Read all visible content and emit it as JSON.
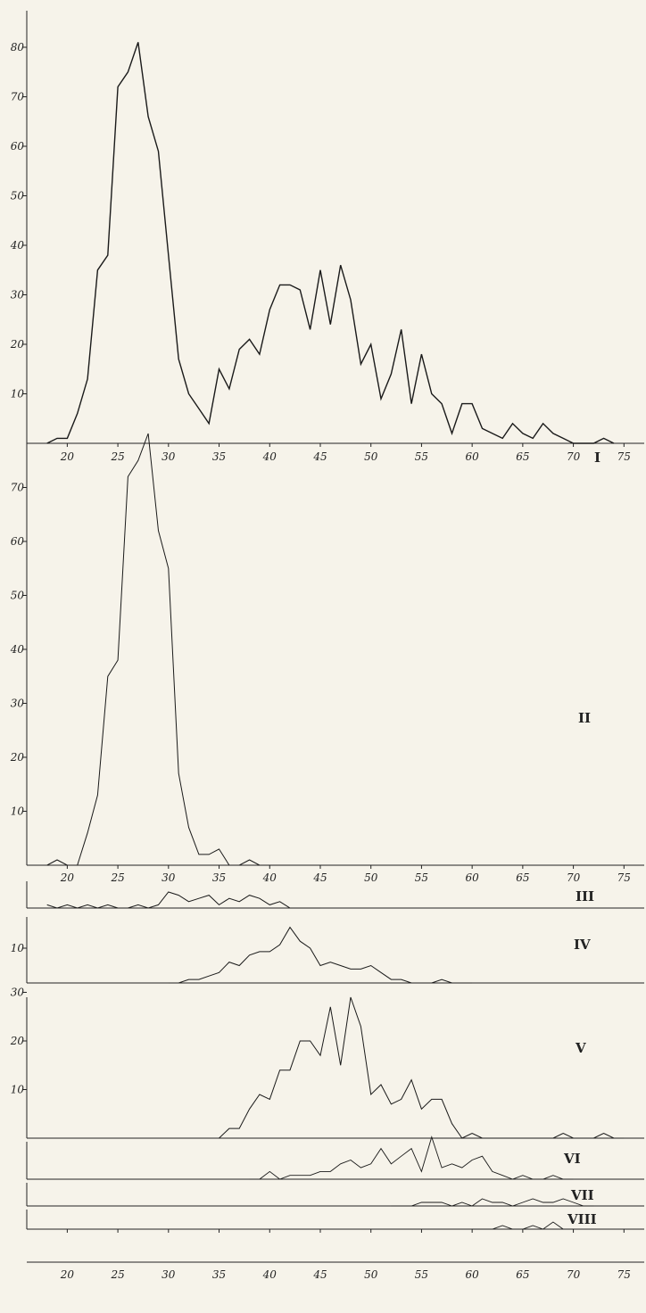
{
  "chart_data": [
    {
      "panel": "I",
      "type": "line",
      "x": [
        18,
        19,
        20,
        21,
        22,
        23,
        24,
        25,
        26,
        27,
        28,
        29,
        30,
        31,
        32,
        33,
        34,
        35,
        36,
        37,
        38,
        39,
        40,
        41,
        42,
        43,
        44,
        45,
        46,
        47,
        48,
        49,
        50,
        51,
        52,
        53,
        54,
        55,
        56,
        57,
        58,
        59,
        60,
        61,
        62,
        63,
        64,
        65,
        66,
        67,
        68,
        69,
        70,
        71,
        72,
        73,
        74
      ],
      "values": [
        0,
        1,
        1,
        6,
        13,
        35,
        38,
        72,
        75,
        81,
        66,
        59,
        38,
        17,
        10,
        7,
        4,
        15,
        11,
        19,
        21,
        18,
        27,
        32,
        32,
        31,
        23,
        35,
        24,
        36,
        29,
        16,
        20,
        9,
        14,
        23,
        8,
        18,
        10,
        8,
        2,
        8,
        8,
        3,
        2,
        1,
        4,
        2,
        1,
        4,
        2,
        1,
        0,
        0,
        0,
        1,
        0
      ],
      "xlim": [
        16,
        77
      ],
      "ylim": [
        0,
        85
      ],
      "xticks": [
        20,
        25,
        30,
        35,
        40,
        45,
        50,
        55,
        60,
        65,
        70,
        75
      ],
      "yticks": [
        10,
        20,
        30,
        40,
        50,
        60,
        70,
        80
      ],
      "label": "I"
    },
    {
      "panel": "II",
      "type": "line",
      "x": [
        18,
        19,
        20,
        21,
        22,
        23,
        24,
        25,
        26,
        27,
        28,
        29,
        30,
        31,
        32,
        33,
        34,
        35,
        36,
        37,
        38,
        39,
        40,
        41,
        42
      ],
      "values": [
        0,
        1,
        0,
        0,
        6,
        13,
        35,
        38,
        72,
        75,
        80,
        62,
        55,
        17,
        7,
        2,
        2,
        3,
        0,
        0,
        1,
        0,
        0,
        0,
        0
      ],
      "xlim": [
        16,
        77
      ],
      "ylim": [
        0,
        80
      ],
      "xticks": [
        20,
        25,
        30,
        35,
        40,
        45,
        50,
        55,
        60,
        65,
        70,
        75
      ],
      "yticks": [
        10,
        20,
        30,
        40,
        50,
        60,
        70
      ],
      "label": "II"
    },
    {
      "panel": "III",
      "type": "line",
      "x": [
        18,
        19,
        20,
        21,
        22,
        23,
        24,
        25,
        26,
        27,
        28,
        29,
        30,
        31,
        32,
        33,
        34,
        35,
        36,
        37,
        38,
        39,
        40,
        41,
        42,
        43,
        44,
        45
      ],
      "values": [
        1,
        0,
        1,
        0,
        1,
        0,
        1,
        0,
        0,
        1,
        0,
        1,
        5,
        4,
        2,
        3,
        4,
        1,
        3,
        2,
        4,
        3,
        1,
        2,
        0,
        0,
        0,
        0
      ],
      "xlim": [
        16,
        77
      ],
      "ylim": [
        0,
        6
      ],
      "label": "III"
    },
    {
      "panel": "IV",
      "type": "line",
      "x": [
        30,
        31,
        32,
        33,
        34,
        35,
        36,
        37,
        38,
        39,
        40,
        41,
        42,
        43,
        44,
        45,
        46,
        47,
        48,
        49,
        50,
        51,
        52,
        53,
        54,
        55,
        56,
        57,
        58,
        59,
        60
      ],
      "values": [
        0,
        0,
        1,
        1,
        2,
        3,
        6,
        5,
        8,
        9,
        9,
        11,
        16,
        12,
        10,
        5,
        6,
        5,
        4,
        4,
        5,
        3,
        1,
        1,
        0,
        0,
        0,
        1,
        0,
        0,
        0
      ],
      "xlim": [
        16,
        77
      ],
      "ylim": [
        0,
        18
      ],
      "yticks": [
        10
      ],
      "label": "IV"
    },
    {
      "panel": "V",
      "type": "line",
      "x": [
        35,
        36,
        37,
        38,
        39,
        40,
        41,
        42,
        43,
        44,
        45,
        46,
        47,
        48,
        49,
        50,
        51,
        52,
        53,
        54,
        55,
        56,
        57,
        58,
        59,
        60,
        61,
        62,
        63,
        64,
        65,
        66,
        67,
        68,
        69,
        70,
        71,
        72,
        73,
        74,
        75
      ],
      "values": [
        0,
        2,
        2,
        6,
        9,
        8,
        14,
        14,
        20,
        20,
        17,
        27,
        15,
        29,
        23,
        9,
        11,
        7,
        8,
        12,
        6,
        8,
        8,
        3,
        0,
        1,
        0,
        0,
        0,
        0,
        0,
        0,
        0,
        0,
        1,
        0,
        0,
        0,
        1,
        0,
        0
      ],
      "xlim": [
        16,
        77
      ],
      "ylim": [
        0,
        30
      ],
      "yticks": [
        10,
        20,
        30
      ],
      "label": "V"
    },
    {
      "panel": "VI",
      "type": "line",
      "x": [
        38,
        39,
        40,
        41,
        42,
        43,
        44,
        45,
        46,
        47,
        48,
        49,
        50,
        51,
        52,
        53,
        54,
        55,
        56,
        57,
        58,
        59,
        60,
        61,
        62,
        63,
        64,
        65,
        66,
        67,
        68,
        69,
        70
      ],
      "values": [
        0,
        0,
        2,
        0,
        1,
        1,
        1,
        2,
        2,
        4,
        5,
        3,
        4,
        8,
        4,
        6,
        8,
        2,
        11,
        3,
        4,
        3,
        5,
        6,
        2,
        1,
        0,
        1,
        0,
        0,
        1,
        0,
        0
      ],
      "xlim": [
        16,
        77
      ],
      "ylim": [
        0,
        12
      ],
      "label": "VI"
    },
    {
      "panel": "VII",
      "type": "line",
      "x": [
        52,
        53,
        54,
        55,
        56,
        57,
        58,
        59,
        60,
        61,
        62,
        63,
        64,
        65,
        66,
        67,
        68,
        69,
        70,
        71,
        72
      ],
      "values": [
        0,
        0,
        0,
        1,
        1,
        1,
        0,
        1,
        0,
        2,
        1,
        1,
        0,
        1,
        2,
        1,
        1,
        2,
        1,
        0,
        0
      ],
      "xlim": [
        16,
        77
      ],
      "ylim": [
        0,
        3
      ],
      "label": "VII"
    },
    {
      "panel": "VIII",
      "type": "line",
      "x": [
        60,
        61,
        62,
        63,
        64,
        65,
        66,
        67,
        68,
        69,
        70
      ],
      "values": [
        0,
        0,
        0,
        1,
        0,
        0,
        1,
        0,
        2,
        0,
        0
      ],
      "xlim": [
        16,
        77
      ],
      "ylim": [
        0,
        3
      ],
      "xticks": [
        20,
        25,
        30,
        35,
        40,
        45,
        50,
        55,
        60,
        65,
        70,
        75
      ],
      "label": "VIII"
    }
  ],
  "style": {
    "paper": "#f6f3ea",
    "ink": "#1a1a1a"
  }
}
